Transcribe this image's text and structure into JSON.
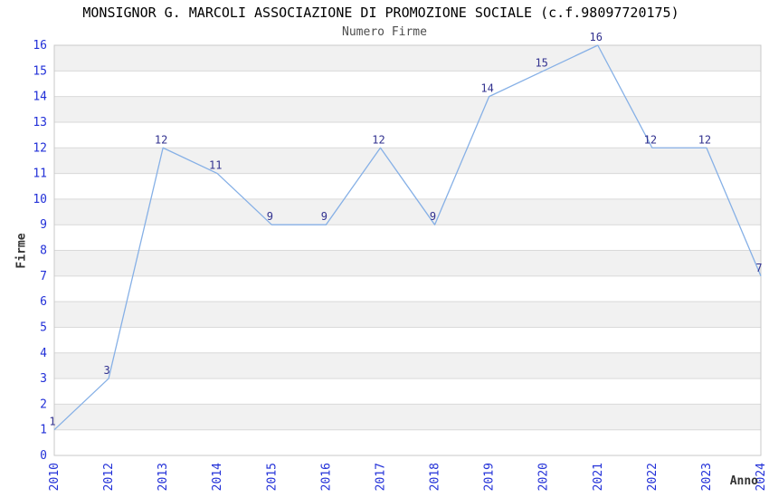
{
  "chart_data": {
    "type": "line",
    "title": "MONSIGNOR G. MARCOLI ASSOCIAZIONE DI PROMOZIONE SOCIALE (c.f.98097720175)",
    "subtitle": "Numero Firme",
    "xlabel": "Anno",
    "ylabel": "Firme",
    "categories": [
      "2010",
      "2012",
      "2013",
      "2014",
      "2015",
      "2016",
      "2017",
      "2018",
      "2019",
      "2020",
      "2021",
      "2022",
      "2023",
      "2024"
    ],
    "values": [
      1,
      3,
      12,
      11,
      9,
      9,
      12,
      9,
      14,
      15,
      16,
      12,
      12,
      7
    ],
    "ylim": [
      0,
      16
    ],
    "ytick_step": 1,
    "grid": true,
    "legend_position": "none",
    "point_labels_shown": true,
    "colors": {
      "series_line": "#86b0e6",
      "tick_label": "#2230d8",
      "point_label": "#31318f",
      "band_fill": "#f1f1f1",
      "grid_line": "#d9d9d9",
      "plot_border": "#c9c9c9",
      "plot_background": "#ffffff"
    }
  }
}
